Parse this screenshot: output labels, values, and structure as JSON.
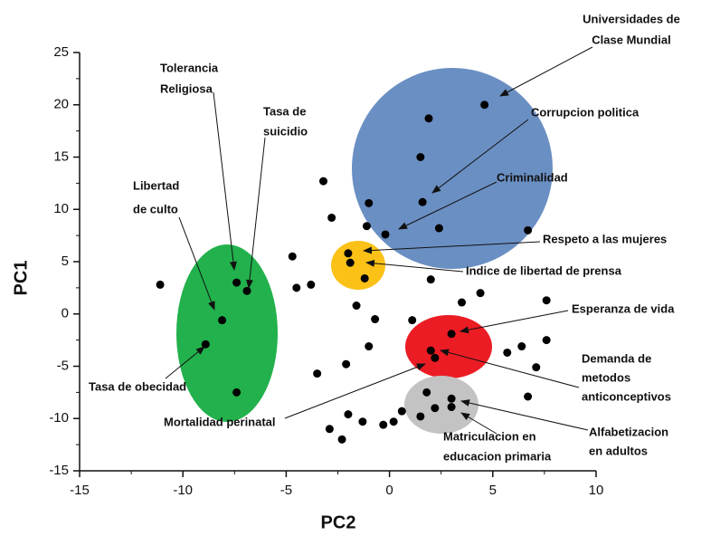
{
  "chart_data": {
    "type": "scatter",
    "xlabel": "PC2",
    "ylabel": "PC1",
    "xlim": [
      -15,
      10
    ],
    "xticks": [
      -15,
      -10,
      -5,
      0,
      5,
      10
    ],
    "ylim": [
      -15,
      25
    ],
    "yticks": [
      -15,
      -10,
      -5,
      0,
      5,
      10,
      15,
      20,
      25
    ],
    "color": "#000000",
    "x": [
      4.6,
      1.9,
      1.5,
      -3.2,
      1.6,
      -1.0,
      -2.8,
      -1.1,
      2.4,
      -0.2,
      6.7,
      -2.0,
      -1.9,
      -1.2,
      -4.7,
      -4.5,
      -3.8,
      2.0,
      -11.1,
      -7.4,
      -6.9,
      -8.1,
      -8.9,
      -7.4,
      4.4,
      3.5,
      7.6,
      -1.6,
      -0.7,
      1.1,
      3.0,
      -1.0,
      2.0,
      2.2,
      5.7,
      6.4,
      7.6,
      7.1,
      -3.5,
      -2.1,
      1.8,
      3.0,
      6.7,
      0.6,
      2.2,
      3.0,
      1.5,
      0.2,
      -0.3,
      -1.3,
      -2.0,
      -2.9,
      -2.3
    ],
    "y": [
      20.0,
      18.7,
      15.0,
      12.7,
      10.7,
      10.6,
      9.2,
      8.4,
      8.2,
      7.6,
      8.0,
      5.8,
      4.9,
      3.4,
      5.5,
      2.5,
      2.8,
      3.3,
      2.8,
      3.0,
      2.2,
      -0.6,
      -2.9,
      -7.5,
      2.0,
      1.1,
      1.3,
      0.8,
      -0.5,
      -0.6,
      -1.9,
      -3.1,
      -3.5,
      -4.2,
      -3.7,
      -3.1,
      -2.5,
      -5.1,
      -5.7,
      -4.8,
      -7.5,
      -8.1,
      -7.9,
      -9.3,
      -9.0,
      -8.9,
      -9.8,
      -10.3,
      -10.6,
      -10.3,
      -9.6,
      -11.0,
      -12.0
    ],
    "annotations": [
      [
        "Universidades de",
        "Clase Mundial"
      ],
      [
        "Corrupcion politica"
      ],
      [
        "Criminalidad"
      ],
      [
        "Respeto a las mujeres"
      ],
      [
        "Indice de libertad de prensa"
      ],
      [
        "Esperanza de vida"
      ],
      [
        "Demanda de",
        "metodos",
        "anticonceptivos"
      ],
      [
        "Alfabetizacion",
        "en adultos"
      ],
      [
        "Matriculacion en",
        "educacion primaria"
      ],
      [
        "Mortalidad perinatal"
      ],
      [
        "Tasa de obecidad"
      ],
      [
        "Libertad",
        "de culto"
      ],
      [
        "Tolerancia",
        "Religiosa"
      ],
      [
        "Tasa de",
        "suicidio"
      ]
    ]
  }
}
